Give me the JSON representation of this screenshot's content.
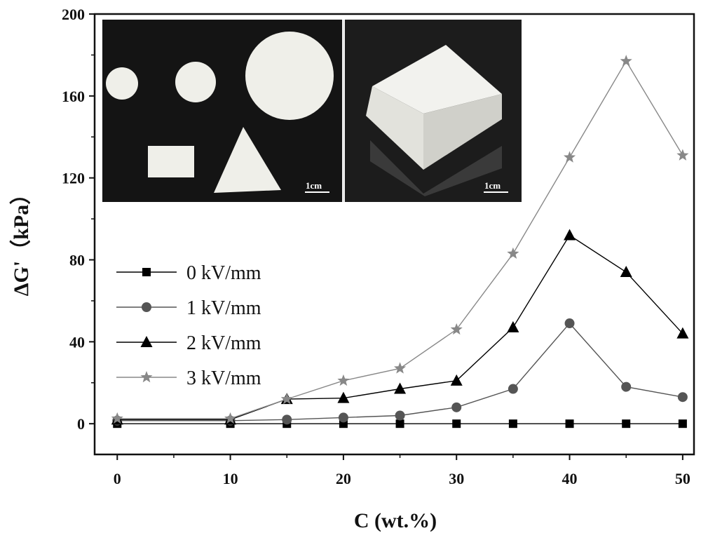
{
  "chart_data": {
    "type": "line",
    "title": "",
    "xlabel": "C (wt.%)",
    "ylabel": "ΔG'（kPa）",
    "xlim": [
      -2,
      51
    ],
    "ylim": [
      -15,
      200
    ],
    "xticks": [
      0,
      10,
      20,
      30,
      40,
      50
    ],
    "yticks": [
      0,
      40,
      80,
      120,
      160,
      200
    ],
    "grid": false,
    "legend_position": "middle-left",
    "x": [
      0,
      10,
      15,
      20,
      25,
      30,
      35,
      40,
      45,
      50
    ],
    "series": [
      {
        "name": "0 kV/mm",
        "marker": "square",
        "color": "#000000",
        "values": [
          0,
          0,
          0,
          0,
          0,
          0,
          0,
          0,
          0,
          0
        ]
      },
      {
        "name": "1 kV/mm",
        "marker": "circle",
        "color": "#555555",
        "values": [
          1.5,
          1.5,
          2,
          3,
          4,
          8,
          17,
          49,
          18,
          13
        ]
      },
      {
        "name": "2 kV/mm",
        "marker": "triangle",
        "color": "#000000",
        "values": [
          2,
          2,
          12,
          12.5,
          17,
          21,
          47,
          92,
          74,
          44
        ]
      },
      {
        "name": "3 kV/mm",
        "marker": "star",
        "color": "#888888",
        "values": [
          2.5,
          2.5,
          12,
          21,
          27,
          46,
          83,
          130,
          177,
          131
        ]
      }
    ],
    "inset": {
      "panels": [
        {
          "name": "shapes",
          "scale_label": "1cm"
        },
        {
          "name": "block",
          "scale_label": "1cm"
        }
      ]
    }
  }
}
